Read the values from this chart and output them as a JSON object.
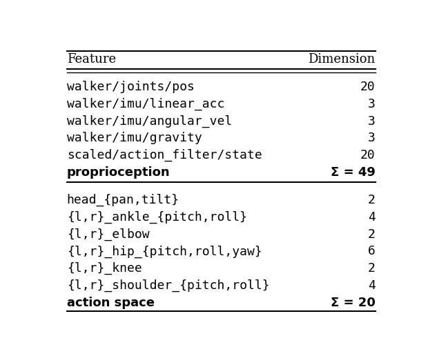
{
  "header": [
    "Feature",
    "Dimension"
  ],
  "section1_rows": [
    [
      "walker/joints/pos",
      "20"
    ],
    [
      "walker/imu/linear_acc",
      "3"
    ],
    [
      "walker/imu/angular_vel",
      "3"
    ],
    [
      "walker/imu/gravity",
      "3"
    ],
    [
      "scaled/action_filter/state",
      "20"
    ]
  ],
  "section1_summary": [
    "proprioception",
    "Σ = 49"
  ],
  "section2_rows": [
    [
      "head_{pan,tilt}",
      "2"
    ],
    [
      "{l,r}_ankle_{pitch,roll}",
      "4"
    ],
    [
      "{l,r}_elbow",
      "2"
    ],
    [
      "{l,r}_hip_{pitch,roll,yaw}",
      "6"
    ],
    [
      "{l,r}_knee",
      "2"
    ],
    [
      "{l,r}_shoulder_{pitch,roll}",
      "4"
    ]
  ],
  "section2_summary": [
    "action space",
    "Σ = 20"
  ],
  "bg_color": "#ffffff",
  "text_color": "#000000",
  "mono_font": "DejaVu Sans Mono",
  "header_font": "DejaVu Serif",
  "bold_font": "DejaVu Sans",
  "fig_width": 6.2,
  "fig_height": 5.16
}
